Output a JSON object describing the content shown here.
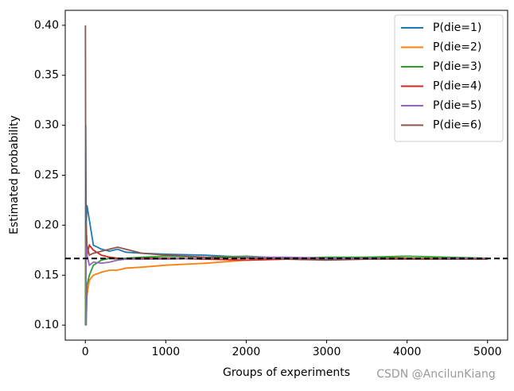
{
  "chart_data": {
    "type": "line",
    "xlabel": "Groups of experiments",
    "ylabel": "Estimated probability",
    "watermark": "CSDN @AncilunKiang",
    "x": [
      1,
      5,
      10,
      20,
      50,
      100,
      200,
      300,
      400,
      500,
      700,
      1000,
      1500,
      2000,
      2500,
      3000,
      3500,
      4000,
      4500,
      5000
    ],
    "series": [
      {
        "name": "P(die=1)",
        "color": "#1f77b4",
        "values": [
          0.1,
          0.3,
          0.2,
          0.22,
          0.205,
          0.18,
          0.176,
          0.174,
          0.176,
          0.173,
          0.172,
          0.171,
          0.17,
          0.168,
          0.167,
          0.166,
          0.167,
          0.166,
          0.167,
          0.166
        ]
      },
      {
        "name": "P(die=2)",
        "color": "#ff7f0e",
        "values": [
          0.1,
          0.2,
          0.1,
          0.13,
          0.145,
          0.15,
          0.153,
          0.155,
          0.155,
          0.157,
          0.158,
          0.16,
          0.162,
          0.165,
          0.166,
          0.167,
          0.168,
          0.167,
          0.167,
          0.167
        ]
      },
      {
        "name": "P(die=3)",
        "color": "#2ca02c",
        "values": [
          0.1,
          0.2,
          0.1,
          0.14,
          0.15,
          0.16,
          0.165,
          0.167,
          0.166,
          0.167,
          0.168,
          0.169,
          0.168,
          0.169,
          0.167,
          0.168,
          0.168,
          0.169,
          0.168,
          0.167
        ]
      },
      {
        "name": "P(die=4)",
        "color": "#d62728",
        "values": [
          0.2,
          0.2,
          0.2,
          0.17,
          0.18,
          0.175,
          0.17,
          0.168,
          0.167,
          0.166,
          0.167,
          0.167,
          0.166,
          0.165,
          0.166,
          0.167,
          0.167,
          0.167,
          0.166,
          0.166
        ]
      },
      {
        "name": "P(die=5)",
        "color": "#9467bd",
        "values": [
          0.1,
          0.1,
          0.2,
          0.17,
          0.16,
          0.163,
          0.162,
          0.163,
          0.165,
          0.166,
          0.166,
          0.166,
          0.167,
          0.168,
          0.168,
          0.167,
          0.167,
          0.166,
          0.167,
          0.167
        ]
      },
      {
        "name": "P(die=6)",
        "color": "#8c564b",
        "values": [
          0.4,
          0.2,
          0.2,
          0.18,
          0.17,
          0.172,
          0.174,
          0.176,
          0.178,
          0.176,
          0.172,
          0.17,
          0.168,
          0.167,
          0.166,
          0.165,
          0.166,
          0.166,
          0.166,
          0.166
        ]
      }
    ],
    "hline": {
      "value": 0.1667,
      "color": "#000000"
    },
    "xlim": [
      -250,
      5250
    ],
    "ylim": [
      0.085,
      0.415
    ],
    "xticks": [
      0,
      1000,
      2000,
      3000,
      4000,
      5000
    ],
    "yticks": [
      {
        "value": 0.1,
        "label": "0.10"
      },
      {
        "value": 0.15,
        "label": "0.15"
      },
      {
        "value": 0.2,
        "label": "0.20"
      },
      {
        "value": 0.25,
        "label": "0.25"
      },
      {
        "value": 0.3,
        "label": "0.30"
      },
      {
        "value": 0.35,
        "label": "0.35"
      },
      {
        "value": 0.4,
        "label": "0.40"
      }
    ],
    "legend": "upper right"
  }
}
